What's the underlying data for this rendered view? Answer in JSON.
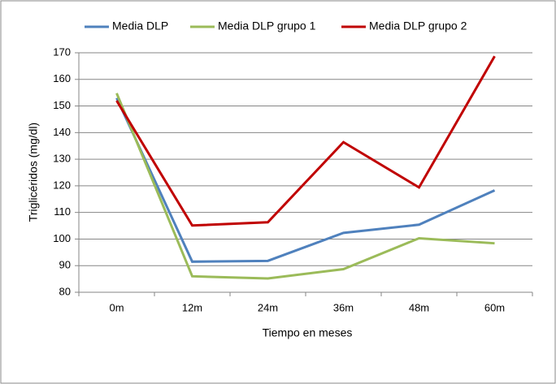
{
  "chart_data": {
    "type": "line",
    "categories": [
      "0m",
      "12m",
      "24m",
      "36m",
      "48m",
      "60m"
    ],
    "series": [
      {
        "name": "Media DLP",
        "color": "#4f81bd",
        "values": [
          153,
          91.5,
          91.8,
          102.3,
          105.4,
          118.3
        ]
      },
      {
        "name": "Media DLP grupo 1",
        "color": "#9bbb59",
        "values": [
          154.8,
          86,
          85.2,
          88.7,
          100.3,
          98.4
        ]
      },
      {
        "name": "Media DLP grupo 2",
        "color": "#c00000",
        "values": [
          152,
          105.1,
          106.3,
          136.4,
          119.4,
          168.7
        ]
      }
    ],
    "ylim": [
      80,
      170
    ],
    "yticks": [
      80,
      90,
      100,
      110,
      120,
      130,
      140,
      150,
      160,
      170
    ],
    "ylabel": "Triglicéridos (mg/dl)",
    "xlabel": "Tiempo en meses",
    "grid": true,
    "legend": "top"
  }
}
